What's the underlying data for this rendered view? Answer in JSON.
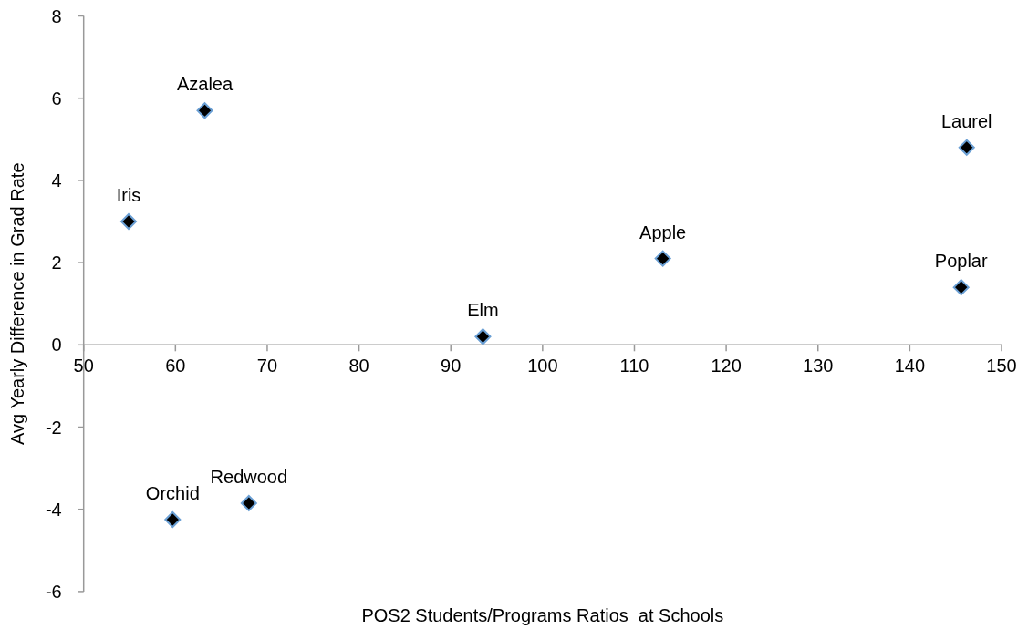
{
  "chart_data": {
    "type": "scatter",
    "xlabel": "POS2 Students/Programs Ratios  at Schools",
    "ylabel": "Avg Yearly Difference in Grad Rate",
    "x": [
      54.9,
      63.2,
      93.5,
      113.1,
      146.2,
      145.6,
      59.7,
      68.0
    ],
    "values": [
      3.0,
      5.7,
      0.2,
      2.1,
      4.8,
      1.4,
      -4.25,
      -3.85
    ],
    "color": "#000000",
    "marker": "diamond",
    "xlim": [
      50,
      150
    ],
    "xticks": [
      50,
      60,
      70,
      80,
      90,
      100,
      110,
      120,
      130,
      140,
      150
    ],
    "ylim": [
      -6,
      8
    ],
    "yticks": [
      -6,
      -4,
      -2,
      0,
      2,
      4,
      6,
      8
    ],
    "annotations": [
      {
        "text": "Iris",
        "x": 54.9,
        "y": 3.0
      },
      {
        "text": "Azalea",
        "x": 63.2,
        "y": 5.7
      },
      {
        "text": "Elm",
        "x": 93.5,
        "y": 0.2
      },
      {
        "text": "Apple",
        "x": 113.1,
        "y": 2.1
      },
      {
        "text": "Laurel",
        "x": 146.2,
        "y": 4.8
      },
      {
        "text": "Poplar",
        "x": 145.6,
        "y": 1.4
      },
      {
        "text": "Orchid",
        "x": 59.7,
        "y": -4.25
      },
      {
        "text": "Redwood",
        "x": 68.0,
        "y": -3.85
      }
    ]
  }
}
